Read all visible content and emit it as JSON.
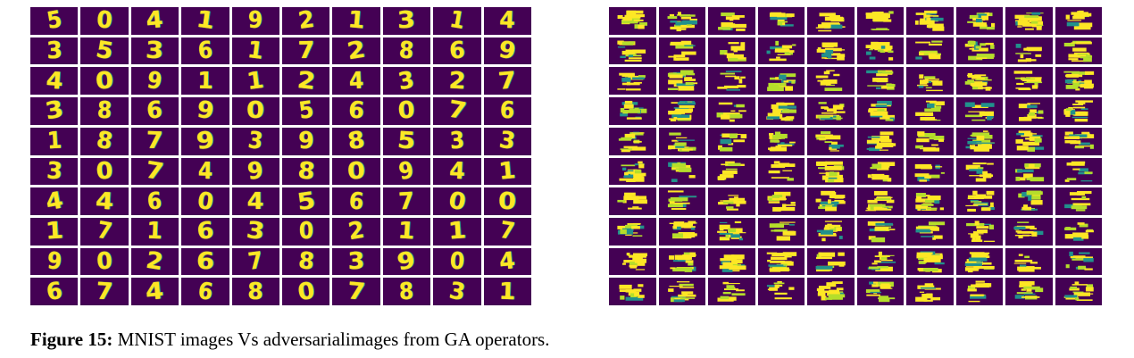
{
  "figure": {
    "label": "Figure 15:",
    "caption": "MNIST images Vs adversarialimages from GA operators.",
    "colors": {
      "background": "#440154",
      "foreground": "#fde725",
      "mid": "#21918c",
      "light": "#b5de2b"
    },
    "mnist_digits": [
      [
        "5",
        "0",
        "4",
        "1",
        "9",
        "2",
        "1",
        "3",
        "1",
        "4"
      ],
      [
        "3",
        "5",
        "3",
        "6",
        "1",
        "7",
        "2",
        "8",
        "6",
        "9"
      ],
      [
        "4",
        "0",
        "9",
        "1",
        "1",
        "2",
        "4",
        "3",
        "2",
        "7"
      ],
      [
        "3",
        "8",
        "6",
        "9",
        "0",
        "5",
        "6",
        "0",
        "7",
        "6"
      ],
      [
        "1",
        "8",
        "7",
        "9",
        "3",
        "9",
        "8",
        "5",
        "3",
        "3"
      ],
      [
        "3",
        "0",
        "7",
        "4",
        "9",
        "8",
        "0",
        "9",
        "4",
        "1"
      ],
      [
        "4",
        "4",
        "6",
        "0",
        "4",
        "5",
        "6",
        "7",
        "0",
        "0"
      ],
      [
        "1",
        "7",
        "1",
        "6",
        "3",
        "0",
        "2",
        "1",
        "1",
        "7"
      ],
      [
        "9",
        "0",
        "2",
        "6",
        "7",
        "8",
        "3",
        "9",
        "0",
        "4"
      ],
      [
        "6",
        "7",
        "4",
        "6",
        "8",
        "0",
        "7",
        "8",
        "3",
        "1"
      ]
    ],
    "adversarial_grid": {
      "rows": 10,
      "cols": 10
    }
  }
}
